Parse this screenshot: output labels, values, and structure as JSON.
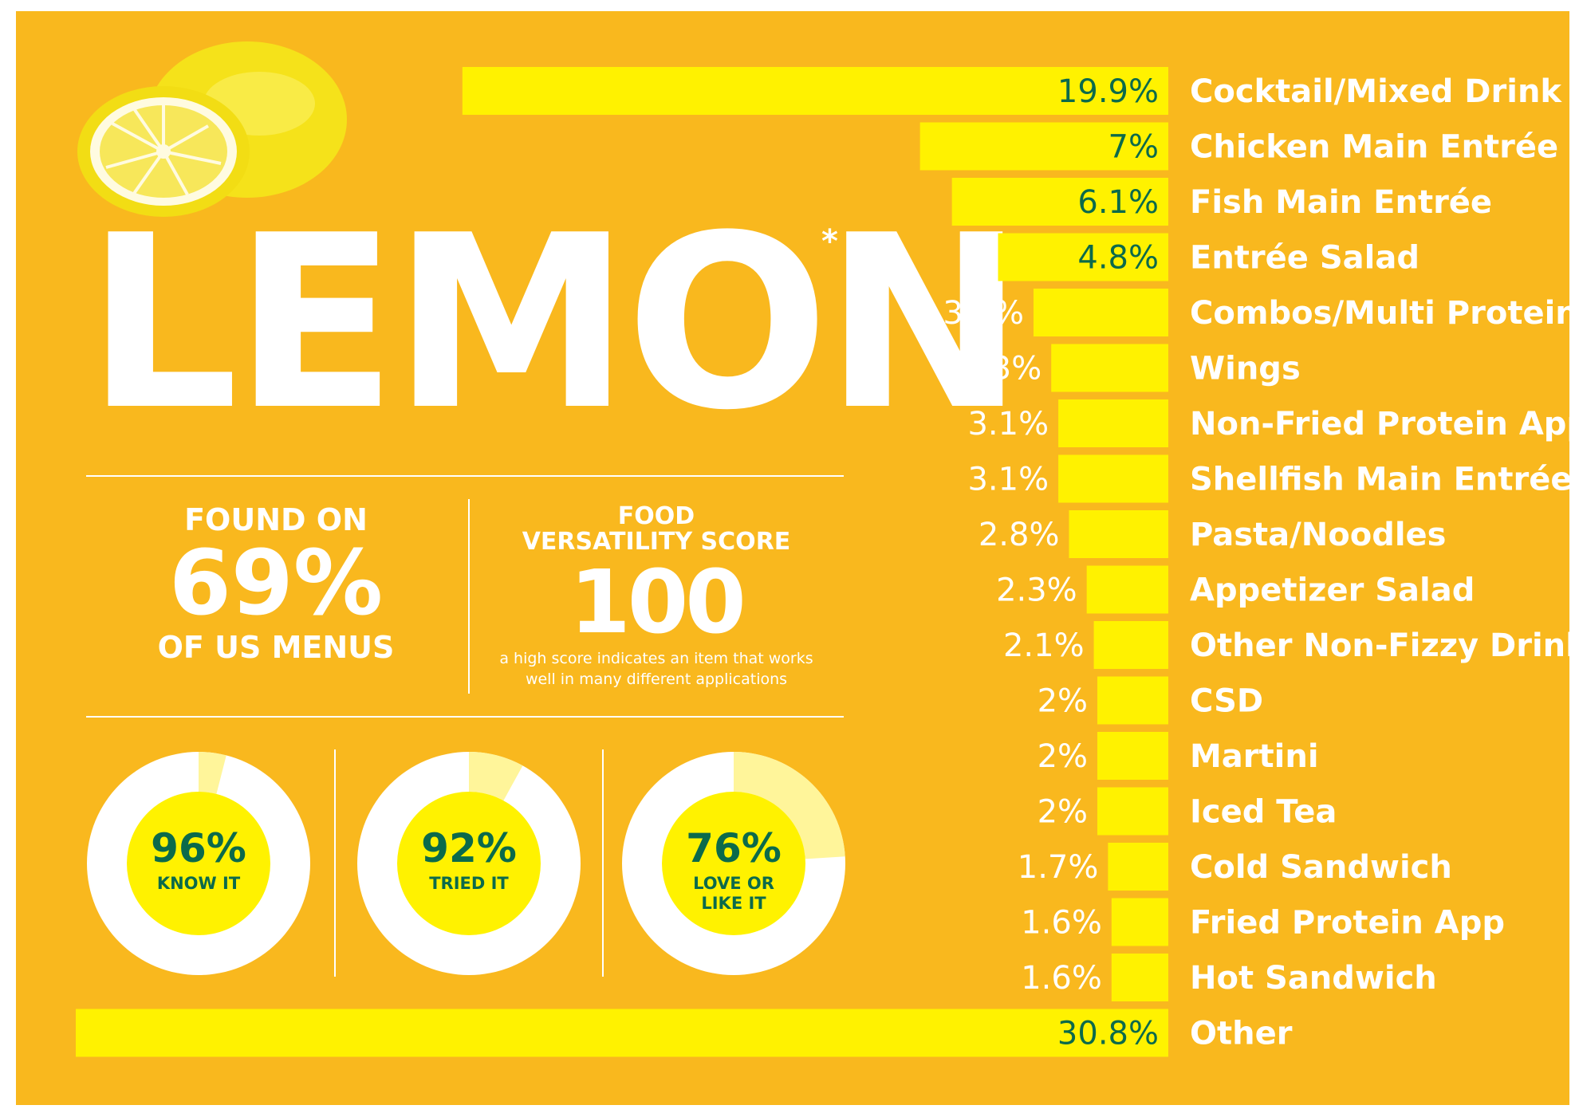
{
  "title": "LEMON",
  "title_mark": "*",
  "found_on": {
    "prefix": "FOUND ON",
    "value": "69%",
    "suffix": "OF US MENUS"
  },
  "versatility": {
    "label_line1": "FOOD",
    "label_line2": "VERSATILITY SCORE",
    "score": "100",
    "note_line1": "a high score indicates an item that works",
    "note_line2": "well in many different applications"
  },
  "donuts": [
    {
      "value": 96,
      "pct_label": "96%",
      "label_lines": [
        "KNOW IT"
      ]
    },
    {
      "value": 92,
      "pct_label": "92%",
      "label_lines": [
        "TRIED IT"
      ]
    },
    {
      "value": 76,
      "pct_label": "76%",
      "label_lines": [
        "LOVE OR",
        "LIKE IT"
      ]
    }
  ],
  "colors": {
    "background": "#f9b81e",
    "bar": "#fff200",
    "text_dark": "#0b6a4b",
    "text_light": "#ffffff",
    "donut_track": "#ffffff",
    "donut_remainder": "#fff59a"
  },
  "chart_data": {
    "type": "bar",
    "orientation": "horizontal",
    "title": "",
    "xlabel": "",
    "ylabel": "",
    "categories": [
      "Cocktail/Mixed Drink",
      "Chicken Main Entrée",
      "Fish Main Entrée",
      "Entrée Salad",
      "Combos/Multi Protein",
      "Wings",
      "Non-Fried Protein App",
      "Shellfish Main Entrée",
      "Pasta/Noodles",
      "Appetizer Salad",
      "Other Non-Fizzy Drink",
      "CSD",
      "Martini",
      "Iced Tea",
      "Cold Sandwich",
      "Fried Protein App",
      "Hot Sandwich",
      "Other"
    ],
    "values": [
      19.9,
      7,
      6.1,
      4.8,
      3.8,
      3.3,
      3.1,
      3.1,
      2.8,
      2.3,
      2.1,
      2,
      2,
      2,
      1.7,
      1.6,
      1.6,
      30.8
    ],
    "value_labels": [
      "19.9%",
      "7%",
      "6.1%",
      "4.8%",
      "3.8%",
      "3.3%",
      "3.1%",
      "3.1%",
      "2.8%",
      "2.3%",
      "2.1%",
      "2%",
      "2%",
      "2%",
      "1.7%",
      "1.6%",
      "1.6%",
      "30.8%"
    ],
    "grid": false,
    "legend": "none"
  }
}
